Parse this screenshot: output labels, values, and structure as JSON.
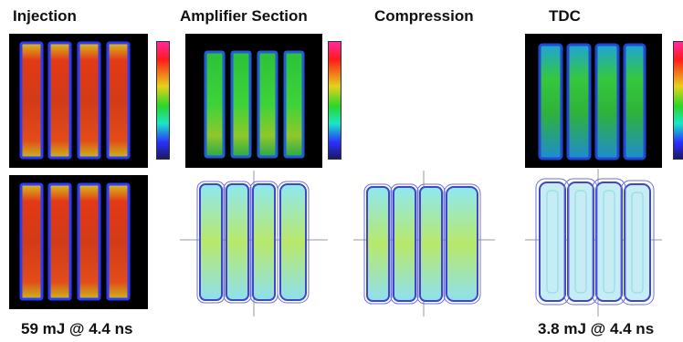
{
  "columns": [
    {
      "id": "injection",
      "title": "Injection"
    },
    {
      "id": "amplifier",
      "title": "Amplifier Section"
    },
    {
      "id": "compression",
      "title": "Compression"
    },
    {
      "id": "tdc",
      "title": "TDC"
    }
  ],
  "footer": {
    "left": "59 mJ @ 4.4 ns",
    "right": "3.8 mJ @ 4.4 ns"
  },
  "colors": {
    "heat_background": "#000000",
    "contour_outline": "#3f46c8",
    "crosshair": "#9a9a9a",
    "colorbar": [
      "#ff2aa0",
      "#ff1a1a",
      "#e6d21a",
      "#2ad62a",
      "#19e6c8",
      "#2a30ff",
      "#1a1a60"
    ]
  }
}
